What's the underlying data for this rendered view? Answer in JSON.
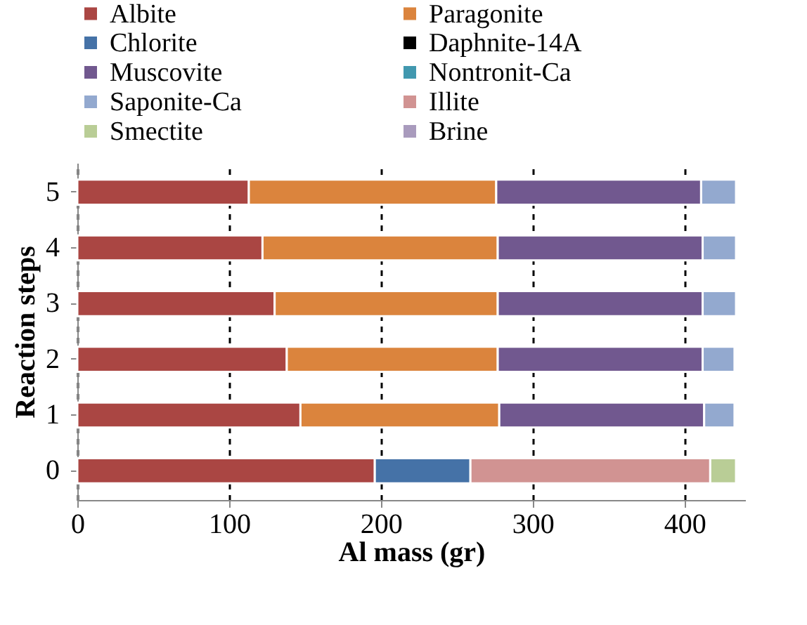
{
  "chart_data": {
    "type": "bar",
    "orientation": "horizontal",
    "stacked": true,
    "xlabel": "Al mass (gr)",
    "ylabel": "Reaction steps",
    "categories": [
      "5",
      "4",
      "3",
      "2",
      "1",
      "0"
    ],
    "series": [
      {
        "name": "Albite",
        "color": "#aa4643",
        "values": [
          113,
          122,
          130,
          138,
          147,
          196
        ]
      },
      {
        "name": "Paragonite",
        "color": "#db843d",
        "values": [
          163,
          155,
          147,
          139,
          131,
          null
        ]
      },
      {
        "name": "Chlorite",
        "color": "#4572a7",
        "values": [
          null,
          null,
          null,
          null,
          null,
          63
        ]
      },
      {
        "name": "Daphnite-14A",
        "color": "#000000",
        "values": [
          null,
          null,
          null,
          null,
          null,
          null
        ]
      },
      {
        "name": "Muscovite",
        "color": "#71588f",
        "values": [
          135,
          135,
          135,
          135,
          135,
          null
        ]
      },
      {
        "name": "Nontronit-Ca",
        "color": "#4198af",
        "values": [
          null,
          null,
          null,
          null,
          null,
          null
        ]
      },
      {
        "name": "Saponite-Ca",
        "color": "#93a9cf",
        "values": [
          23,
          22,
          22,
          21,
          20,
          null
        ]
      },
      {
        "name": "Illite",
        "color": "#d19392",
        "values": [
          null,
          null,
          null,
          null,
          null,
          158
        ]
      },
      {
        "name": "Smectite",
        "color": "#b9cd96",
        "values": [
          null,
          null,
          null,
          null,
          null,
          17
        ]
      },
      {
        "name": "Brine",
        "color": "#a99bbd",
        "values": [
          null,
          null,
          null,
          null,
          null,
          null
        ]
      }
    ],
    "xlim": [
      0,
      440
    ],
    "xticks": [
      0,
      100,
      200,
      300,
      400
    ],
    "grid": "x",
    "line_style": "dashed",
    "legend": "top"
  }
}
